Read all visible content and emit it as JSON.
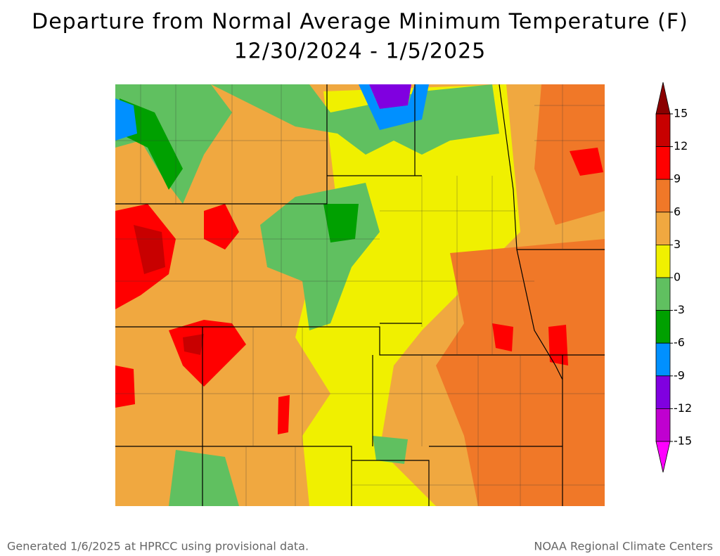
{
  "title": [
    "Departure from Normal Average Minimum Temperature (F)",
    "12/30/2024 - 1/5/2025"
  ],
  "legend": {
    "ticks": [
      15,
      12,
      9,
      6,
      3,
      0,
      -3,
      -6,
      -9,
      -12,
      -15
    ],
    "colors": [
      "#8b0000",
      "#c80000",
      "#ff0000",
      "#f07828",
      "#f0a840",
      "#f0f000",
      "#60c060",
      "#00a000",
      "#0090ff",
      "#8000e0",
      "#c000d0",
      "#ff00ff"
    ]
  },
  "footer": {
    "left": "Generated 1/6/2025 at HPRCC using provisional data.",
    "right": "NOAA Regional Climate Centers"
  }
}
